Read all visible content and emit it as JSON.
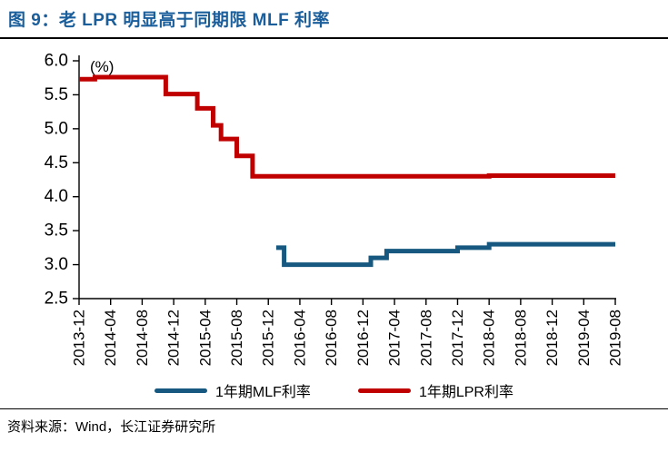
{
  "header": {
    "title": "图 9：老 LPR 明显高于同期限 MLF 利率",
    "title_color": "#1A5E9C"
  },
  "chart_data": {
    "type": "line",
    "step": true,
    "title": "老 LPR 明显高于同期限 MLF 利率",
    "unit_label": "(%)",
    "ylim": [
      2.5,
      6.0
    ],
    "y_ticks": [
      "2.5",
      "3.0",
      "3.5",
      "4.0",
      "4.5",
      "5.0",
      "5.5",
      "6.0"
    ],
    "x_start": "2013-12",
    "x_end": "2019-08",
    "x_ticks": [
      "2013-12",
      "2014-04",
      "2014-08",
      "2014-12",
      "2015-04",
      "2015-08",
      "2015-12",
      "2016-04",
      "2016-08",
      "2016-12",
      "2017-04",
      "2017-08",
      "2017-12",
      "2018-04",
      "2018-08",
      "2018-12",
      "2019-04",
      "2019-08"
    ],
    "grid": false,
    "legend_position": "bottom",
    "series": [
      {
        "name": "1年期MLF利率",
        "color": "#16587F",
        "points": [
          [
            "2016-01",
            3.25
          ],
          [
            "2016-02",
            3.0
          ],
          [
            "2017-01",
            3.1
          ],
          [
            "2017-03",
            3.2
          ],
          [
            "2017-12",
            3.25
          ],
          [
            "2018-04",
            3.3
          ],
          [
            "2019-08",
            3.3
          ]
        ]
      },
      {
        "name": "1年期LPR利率",
        "color": "#C00000",
        "points": [
          [
            "2013-12",
            5.73
          ],
          [
            "2014-02",
            5.76
          ],
          [
            "2014-11",
            5.51
          ],
          [
            "2015-03",
            5.3
          ],
          [
            "2015-05",
            5.05
          ],
          [
            "2015-06",
            4.85
          ],
          [
            "2015-08",
            4.6
          ],
          [
            "2015-10",
            4.3
          ],
          [
            "2018-04",
            4.31
          ],
          [
            "2019-08",
            4.31
          ]
        ]
      }
    ]
  },
  "footer": {
    "source": "资料来源：Wind，长江证券研究所"
  }
}
